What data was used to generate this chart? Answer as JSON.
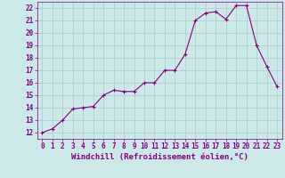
{
  "x": [
    0,
    1,
    2,
    3,
    4,
    5,
    6,
    7,
    8,
    9,
    10,
    11,
    12,
    13,
    14,
    15,
    16,
    17,
    18,
    19,
    20,
    21,
    22,
    23
  ],
  "y": [
    12,
    12.3,
    13.0,
    13.9,
    14.0,
    14.1,
    15.0,
    15.4,
    15.3,
    15.3,
    16.0,
    16.0,
    17.0,
    17.0,
    18.3,
    21.0,
    21.6,
    21.7,
    21.1,
    22.2,
    22.2,
    19.0,
    17.3,
    15.7
  ],
  "xlim": [
    -0.5,
    23.5
  ],
  "ylim": [
    11.5,
    22.5
  ],
  "yticks": [
    12,
    13,
    14,
    15,
    16,
    17,
    18,
    19,
    20,
    21,
    22
  ],
  "xticks": [
    0,
    1,
    2,
    3,
    4,
    5,
    6,
    7,
    8,
    9,
    10,
    11,
    12,
    13,
    14,
    15,
    16,
    17,
    18,
    19,
    20,
    21,
    22,
    23
  ],
  "line_color": "#800080",
  "marker": "+",
  "marker_color": "#800080",
  "bg_color": "#cce8e8",
  "grid_color": "#aacccc",
  "xlabel": "Windchill (Refroidissement éolien,°C)",
  "xlabel_color": "#800080",
  "tick_color": "#800080",
  "axis_color": "#800080",
  "label_fontsize": 6.5,
  "tick_fontsize": 5.5
}
